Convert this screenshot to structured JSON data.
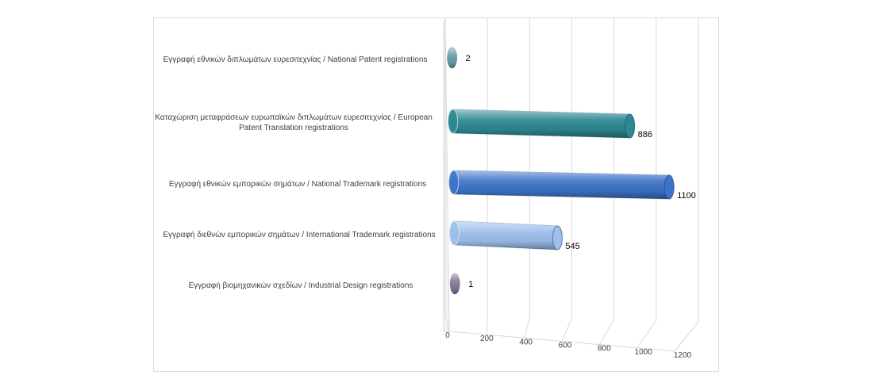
{
  "chart_data": {
    "type": "bar",
    "orientation": "horizontal",
    "style": "3d-cylinder",
    "categories": [
      "Εγγραφή εθνικών  διπλωμάτων ευρεσιτεχνίας  / National Patent registrations",
      "Καταχώριση  μεταφράσεων ευρωπαϊκών  διπλωμάτων ευρεσιτεχνίας  / European Patent Translation registrations",
      "Εγγραφή εθνικών  εμπορικών σημάτων  / National Trademark registrations",
      "Εγγραφή διεθνών  εμπορικών σημάτων  / International Trademark registrations",
      "Εγγραφή βιομηχανικών  σχεδίων  / Industrial Design registrations"
    ],
    "values": [
      2,
      886,
      1100,
      545,
      1
    ],
    "value_labels": [
      "2",
      "886",
      "1100",
      "545",
      "1"
    ],
    "colors": [
      "#6c9eae",
      "#2c8893",
      "#3e74c8",
      "#9cbfec",
      "#8a7a9c"
    ],
    "xlim": [
      0,
      1200
    ],
    "x_ticks": [
      "0",
      "200",
      "400",
      "600",
      "800",
      "1000",
      "1200"
    ],
    "grid": true,
    "legend": "none",
    "title": "",
    "xlabel": "",
    "ylabel": ""
  }
}
